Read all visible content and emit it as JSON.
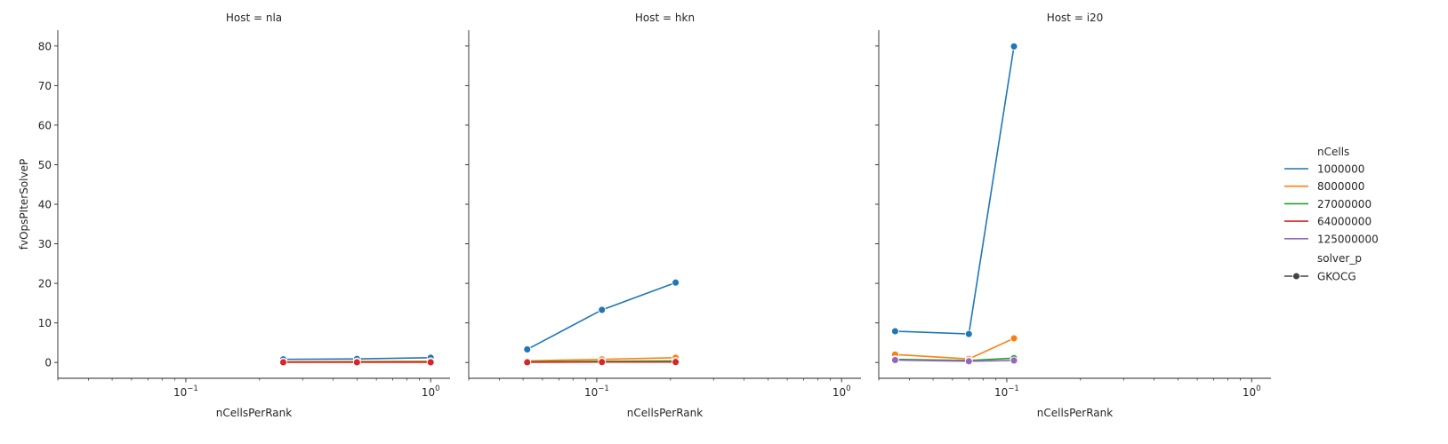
{
  "chart_data": {
    "type": "line",
    "x_scale": "log",
    "xlim": [
      0.03,
      1.2
    ],
    "ylim": [
      -4,
      84
    ],
    "xlabel": "nCellsPerRank",
    "ylabel": "fvOpsPIterSolveP",
    "x_ticks": [
      {
        "value": 0.1,
        "base": "10",
        "exp": "−1"
      },
      {
        "value": 1,
        "base": "10",
        "exp": "0"
      }
    ],
    "y_ticks": [
      0,
      10,
      20,
      30,
      40,
      50,
      60,
      70,
      80
    ],
    "legend": {
      "title": "nCells",
      "items": [
        {
          "label": "1000000",
          "color": "#1f77b4"
        },
        {
          "label": "8000000",
          "color": "#ff7f0e"
        },
        {
          "label": "27000000",
          "color": "#2ca02c"
        },
        {
          "label": "64000000",
          "color": "#d62728"
        },
        {
          "label": "125000000",
          "color": "#9467bd"
        }
      ],
      "style_title": "solver_p",
      "style_items": [
        {
          "label": "GKOCG",
          "color": "#444444"
        }
      ]
    },
    "panels": [
      {
        "title": "Host = nla",
        "series": [
          {
            "label": "1000000",
            "color": "#1f77b4",
            "x": [
              0.25,
              0.5,
              1.0
            ],
            "y": [
              0.8,
              0.9,
              1.2
            ]
          },
          {
            "label": "8000000",
            "color": "#ff7f0e",
            "x": [
              0.25,
              0.5,
              1.0
            ],
            "y": [
              0.2,
              0.25,
              0.3
            ]
          },
          {
            "label": "27000000",
            "color": "#2ca02c",
            "x": [
              0.25,
              0.5,
              1.0
            ],
            "y": [
              0.1,
              0.12,
              0.15
            ]
          },
          {
            "label": "64000000",
            "color": "#d62728",
            "x": [
              0.25,
              0.5,
              1.0
            ],
            "y": [
              0.05,
              0.05,
              0.05
            ]
          }
        ]
      },
      {
        "title": "Host = hkn",
        "series": [
          {
            "label": "1000000",
            "color": "#1f77b4",
            "x": [
              0.052,
              0.105,
              0.21
            ],
            "y": [
              3.3,
              13.3,
              20.2
            ]
          },
          {
            "label": "8000000",
            "color": "#ff7f0e",
            "x": [
              0.052,
              0.105,
              0.21
            ],
            "y": [
              0.4,
              0.8,
              1.2
            ]
          },
          {
            "label": "27000000",
            "color": "#2ca02c",
            "x": [
              0.052,
              0.105,
              0.21
            ],
            "y": [
              0.2,
              0.3,
              0.4
            ]
          },
          {
            "label": "64000000",
            "color": "#d62728",
            "x": [
              0.052,
              0.105,
              0.21
            ],
            "y": [
              0.05,
              0.1,
              0.1
            ]
          }
        ]
      },
      {
        "title": "Host = i20",
        "series": [
          {
            "label": "1000000",
            "color": "#1f77b4",
            "x": [
              0.035,
              0.07,
              0.107
            ],
            "y": [
              7.9,
              7.2,
              79.9
            ]
          },
          {
            "label": "8000000",
            "color": "#ff7f0e",
            "x": [
              0.035,
              0.07,
              0.107
            ],
            "y": [
              2.0,
              0.9,
              6.1
            ]
          },
          {
            "label": "27000000",
            "color": "#2ca02c",
            "x": [
              0.035,
              0.07,
              0.107
            ],
            "y": [
              0.8,
              0.5,
              1.1
            ]
          },
          {
            "label": "125000000",
            "color": "#9467bd",
            "x": [
              0.035,
              0.07,
              0.107
            ],
            "y": [
              0.6,
              0.3,
              0.5
            ]
          }
        ]
      }
    ]
  }
}
